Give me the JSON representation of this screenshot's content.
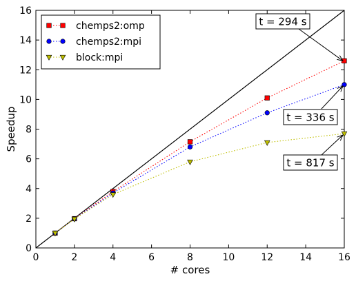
{
  "chart_data": {
    "type": "line",
    "xlabel": "# cores",
    "ylabel": "Speedup",
    "xlim": [
      0,
      16
    ],
    "ylim": [
      0,
      16
    ],
    "x_ticks": [
      0,
      2,
      4,
      6,
      8,
      10,
      12,
      14,
      16
    ],
    "y_ticks": [
      0,
      2,
      4,
      6,
      8,
      10,
      12,
      14,
      16
    ],
    "x": [
      1,
      2,
      4,
      8,
      12,
      16
    ],
    "ideal_line": {
      "x": [
        0,
        16
      ],
      "y": [
        0,
        16
      ],
      "color": "#000000"
    },
    "series": [
      {
        "name": "chemps2:omp",
        "values": [
          1.0,
          1.97,
          3.8,
          7.15,
          10.1,
          12.6
        ],
        "color": "#ff0000",
        "marker": "square"
      },
      {
        "name": "chemps2:mpi",
        "values": [
          1.0,
          1.96,
          3.7,
          6.8,
          9.1,
          11.0
        ],
        "color": "#0000ff",
        "marker": "circle"
      },
      {
        "name": "block:mpi",
        "values": [
          1.0,
          1.95,
          3.6,
          5.8,
          7.1,
          7.7
        ],
        "color": "#bfbf00",
        "marker": "triangle-down"
      }
    ],
    "annotations": [
      {
        "text": "t = 294 s",
        "series": "chemps2:omp",
        "x": 16,
        "y": 12.6
      },
      {
        "text": "t = 336 s",
        "series": "chemps2:mpi",
        "x": 16,
        "y": 11.0
      },
      {
        "text": "t = 817 s",
        "series": "block:mpi",
        "x": 16,
        "y": 7.7
      }
    ],
    "legend_position": "top-left",
    "grid": false
  }
}
